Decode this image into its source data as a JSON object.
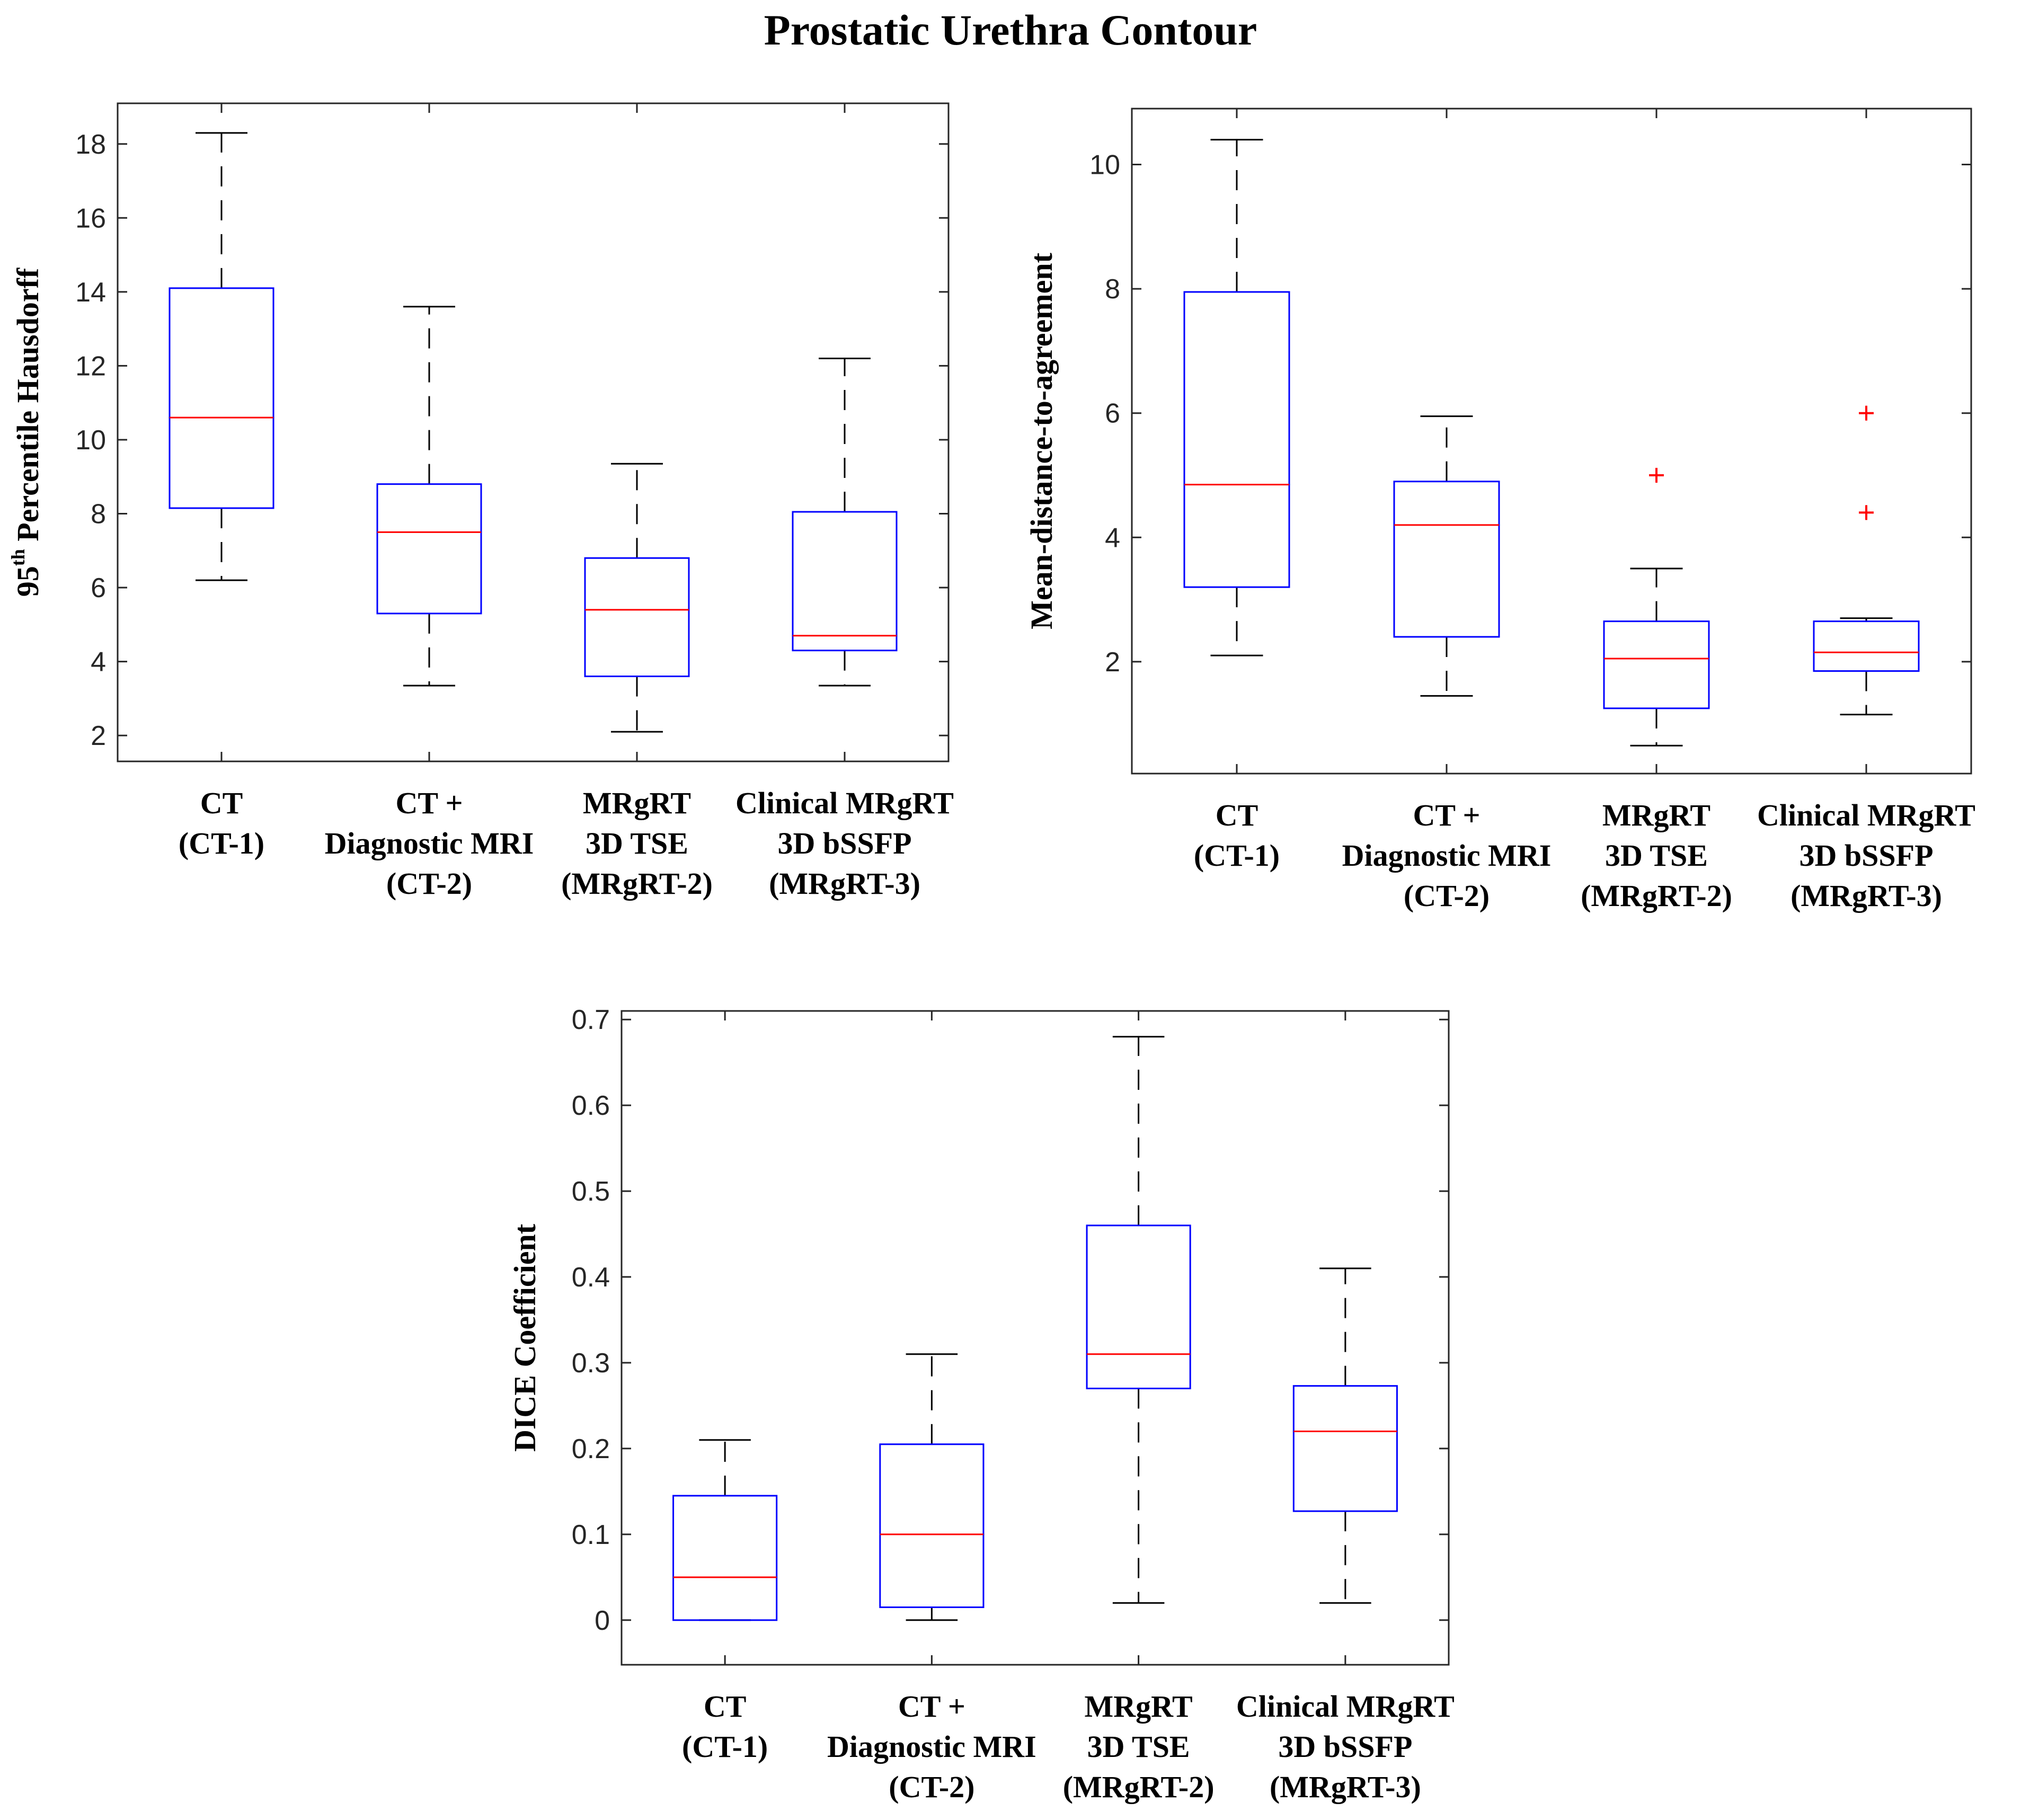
{
  "figure_title": "Prostatic Urethra Contour",
  "colors": {
    "box": "#0000ff",
    "median": "#ff0000",
    "whisker": "#000000",
    "outlier": "#ff0000",
    "axis": "#262626"
  },
  "chart_data": [
    {
      "type": "box",
      "title": "",
      "ylabel": {
        "main": "95",
        "sup": "th",
        "rest": " Percentile Hausdorff"
      },
      "ylim": [
        1.3,
        19.1
      ],
      "yticks": [
        2,
        4,
        6,
        8,
        10,
        12,
        14,
        16,
        18
      ],
      "ytick_labels": [
        "2",
        "4",
        "6",
        "8",
        "10",
        "12",
        "14",
        "16",
        "18"
      ],
      "categories": [
        [
          "CT",
          "(CT-1)"
        ],
        [
          "CT +",
          "Diagnostic MRI",
          "(CT-2)"
        ],
        [
          "MRgRT",
          "3D TSE",
          "(MRgRT-2)"
        ],
        [
          "Clinical MRgRT",
          "3D bSSFP",
          "(MRgRT-3)"
        ]
      ],
      "boxes": [
        {
          "whisker_low": 6.2,
          "q1": 8.15,
          "median": 10.6,
          "q3": 14.1,
          "whisker_high": 18.3,
          "outliers": []
        },
        {
          "whisker_low": 3.35,
          "q1": 5.3,
          "median": 7.5,
          "q3": 8.8,
          "whisker_high": 13.6,
          "outliers": []
        },
        {
          "whisker_low": 2.1,
          "q1": 3.6,
          "median": 5.4,
          "q3": 6.8,
          "whisker_high": 9.35,
          "outliers": []
        },
        {
          "whisker_low": 3.35,
          "q1": 4.3,
          "median": 4.7,
          "q3": 8.05,
          "whisker_high": 12.2,
          "outliers": []
        }
      ]
    },
    {
      "type": "box",
      "title": "",
      "ylabel": {
        "main": "Mean-distance-to-agreement",
        "sup": "",
        "rest": ""
      },
      "ylim": [
        0.2,
        10.9
      ],
      "yticks": [
        2,
        4,
        6,
        8,
        10
      ],
      "ytick_labels": [
        "2",
        "4",
        "6",
        "8",
        "10"
      ],
      "categories": [
        [
          "CT",
          "(CT-1)"
        ],
        [
          "CT +",
          "Diagnostic MRI",
          "(CT-2)"
        ],
        [
          "MRgRT",
          "3D TSE",
          "(MRgRT-2)"
        ],
        [
          "Clinical MRgRT",
          "3D bSSFP",
          "(MRgRT-3)"
        ]
      ],
      "boxes": [
        {
          "whisker_low": 2.1,
          "q1": 3.2,
          "median": 4.85,
          "q3": 7.95,
          "whisker_high": 10.4,
          "outliers": []
        },
        {
          "whisker_low": 1.45,
          "q1": 2.4,
          "median": 4.2,
          "q3": 4.9,
          "whisker_high": 5.95,
          "outliers": []
        },
        {
          "whisker_low": 0.65,
          "q1": 1.25,
          "median": 2.05,
          "q3": 2.65,
          "whisker_high": 3.5,
          "outliers": [
            5.0
          ]
        },
        {
          "whisker_low": 1.15,
          "q1": 1.85,
          "median": 2.15,
          "q3": 2.65,
          "whisker_high": 2.7,
          "outliers": [
            4.4,
            6.0
          ]
        }
      ]
    },
    {
      "type": "box",
      "title": "",
      "ylabel": {
        "main": "DICE Coefficient",
        "sup": "",
        "rest": ""
      },
      "ylim": [
        -0.052,
        0.71
      ],
      "yticks": [
        0,
        0.1,
        0.2,
        0.3,
        0.4,
        0.5,
        0.6,
        0.7
      ],
      "ytick_labels": [
        "0",
        "0.1",
        "0.2",
        "0.3",
        "0.4",
        "0.5",
        "0.6",
        "0.7"
      ],
      "categories": [
        [
          "CT",
          "(CT-1)"
        ],
        [
          "CT +",
          "Diagnostic MRI",
          "(CT-2)"
        ],
        [
          "MRgRT",
          "3D TSE",
          "(MRgRT-2)"
        ],
        [
          "Clinical MRgRT",
          "3D bSSFP",
          "(MRgRT-3)"
        ]
      ],
      "boxes": [
        {
          "whisker_low": 0.0,
          "q1": 0.0,
          "median": 0.05,
          "q3": 0.145,
          "whisker_high": 0.21,
          "outliers": []
        },
        {
          "whisker_low": 0.0,
          "q1": 0.015,
          "median": 0.1,
          "q3": 0.205,
          "whisker_high": 0.31,
          "outliers": []
        },
        {
          "whisker_low": 0.02,
          "q1": 0.27,
          "median": 0.31,
          "q3": 0.46,
          "whisker_high": 0.68,
          "outliers": []
        },
        {
          "whisker_low": 0.02,
          "q1": 0.127,
          "median": 0.22,
          "q3": 0.273,
          "whisker_high": 0.41,
          "outliers": []
        }
      ]
    }
  ]
}
